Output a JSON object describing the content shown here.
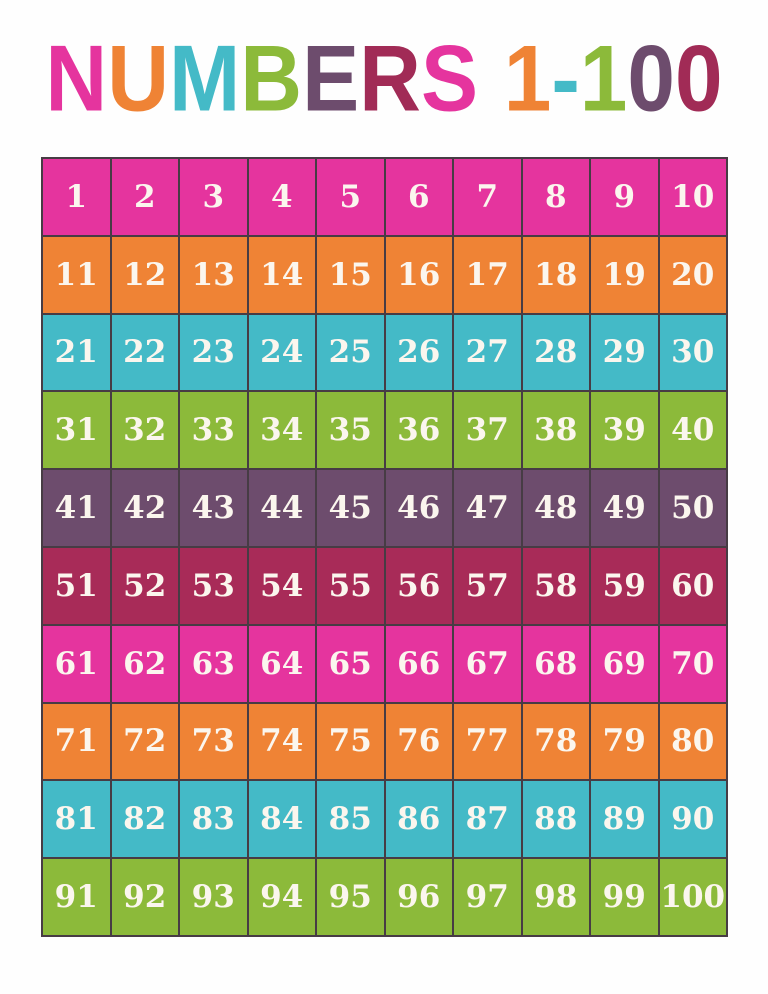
{
  "title": {
    "text": "NUMBERS 1-100",
    "letters": [
      {
        "char": "N",
        "color": "#e5349e"
      },
      {
        "char": "U",
        "color": "#ef8335"
      },
      {
        "char": "M",
        "color": "#44bac7"
      },
      {
        "char": "B",
        "color": "#8cba3a"
      },
      {
        "char": "E",
        "color": "#6d4c6d"
      },
      {
        "char": "R",
        "color": "#a12b56"
      },
      {
        "char": "S",
        "color": "#e5349e"
      },
      {
        "char": " ",
        "color": ""
      },
      {
        "char": "1",
        "color": "#ef8335"
      },
      {
        "char": "-",
        "color": "#44bac7"
      },
      {
        "char": "1",
        "color": "#8cba3a"
      },
      {
        "char": "0",
        "color": "#6d4c6d"
      },
      {
        "char": "0",
        "color": "#a12b56"
      }
    ]
  },
  "palette": {
    "pink": "#e5349e",
    "orange": "#ef8335",
    "teal": "#44bac7",
    "green": "#8cba3a",
    "plum": "#6d4c6d",
    "berry": "#a82b58",
    "grid_border": "#473c44",
    "number_text": "#fbf6ee",
    "page_background": "#fefefe"
  },
  "grid": {
    "rows": [
      {
        "color_name": "pink",
        "values": [
          1,
          2,
          3,
          4,
          5,
          6,
          7,
          8,
          9,
          10
        ]
      },
      {
        "color_name": "orange",
        "values": [
          11,
          12,
          13,
          14,
          15,
          16,
          17,
          18,
          19,
          20
        ]
      },
      {
        "color_name": "teal",
        "values": [
          21,
          22,
          23,
          24,
          25,
          26,
          27,
          28,
          29,
          30
        ]
      },
      {
        "color_name": "green",
        "values": [
          31,
          32,
          33,
          34,
          35,
          36,
          37,
          38,
          39,
          40
        ]
      },
      {
        "color_name": "plum",
        "values": [
          41,
          42,
          43,
          44,
          45,
          46,
          47,
          48,
          49,
          50
        ]
      },
      {
        "color_name": "berry",
        "values": [
          51,
          52,
          53,
          54,
          55,
          56,
          57,
          58,
          59,
          60
        ]
      },
      {
        "color_name": "pink",
        "values": [
          61,
          62,
          63,
          64,
          65,
          66,
          67,
          68,
          69,
          70
        ]
      },
      {
        "color_name": "orange",
        "values": [
          71,
          72,
          73,
          74,
          75,
          76,
          77,
          78,
          79,
          80
        ]
      },
      {
        "color_name": "teal",
        "values": [
          81,
          82,
          83,
          84,
          85,
          86,
          87,
          88,
          89,
          90
        ]
      },
      {
        "color_name": "green",
        "values": [
          91,
          92,
          93,
          94,
          95,
          96,
          97,
          98,
          99,
          100
        ]
      }
    ]
  }
}
